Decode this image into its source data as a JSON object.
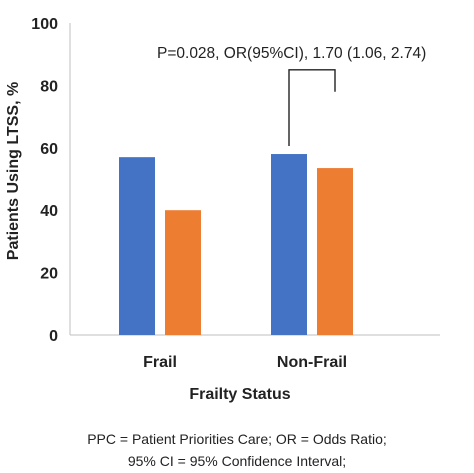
{
  "chart_data": {
    "type": "bar",
    "categories": [
      "Frail",
      "Non-Frail"
    ],
    "series": [
      {
        "values": [
          57,
          58
        ],
        "color": "#4472C4"
      },
      {
        "values": [
          40,
          53.5
        ],
        "color": "#ED7D31"
      }
    ],
    "xlabel": "Frailty Status",
    "ylabel": "Patients Using LTSS, %",
    "ylim": [
      0,
      100
    ],
    "yticks": [
      0,
      20,
      40,
      60,
      80,
      100
    ],
    "annotation": "P=0.028, OR(95%CI), 1.70 (1.06, 2.74)",
    "annotation_category": "Non-Frail",
    "grid": false,
    "legend": "none"
  },
  "footnote": {
    "line1": "PPC = Patient Priorities Care; OR = Odds Ratio;",
    "line2": "95% CI = 95% Confidence Interval;"
  }
}
